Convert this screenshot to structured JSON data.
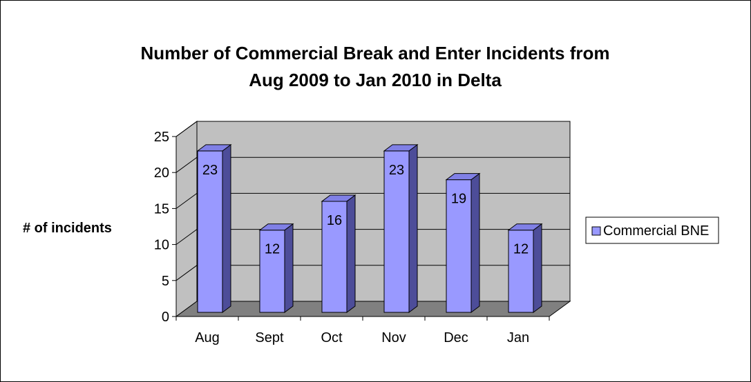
{
  "chart_data": {
    "type": "bar",
    "title_lines": [
      "Number of Commercial Break and Enter Incidents from",
      "Aug 2009 to Jan 2010 in Delta"
    ],
    "ylabel": "# of incidents",
    "xlabel": "",
    "categories": [
      "Aug",
      "Sept",
      "Oct",
      "Nov",
      "Dec",
      "Jan"
    ],
    "series": [
      {
        "name": "Commercial BNE",
        "values": [
          23,
          12,
          16,
          23,
          19,
          12
        ]
      }
    ],
    "ylim": [
      0,
      25
    ],
    "yticks": [
      "0",
      "5",
      "10",
      "15",
      "20",
      "25"
    ],
    "grid": true,
    "legend_position": "right",
    "colors": {
      "bar_front": "#9999ff",
      "bar_side": "#4d4d99",
      "bar_top": "#8080e6",
      "wall": "#c0c0c0",
      "floor": "#808080",
      "grid": "#000000"
    }
  }
}
